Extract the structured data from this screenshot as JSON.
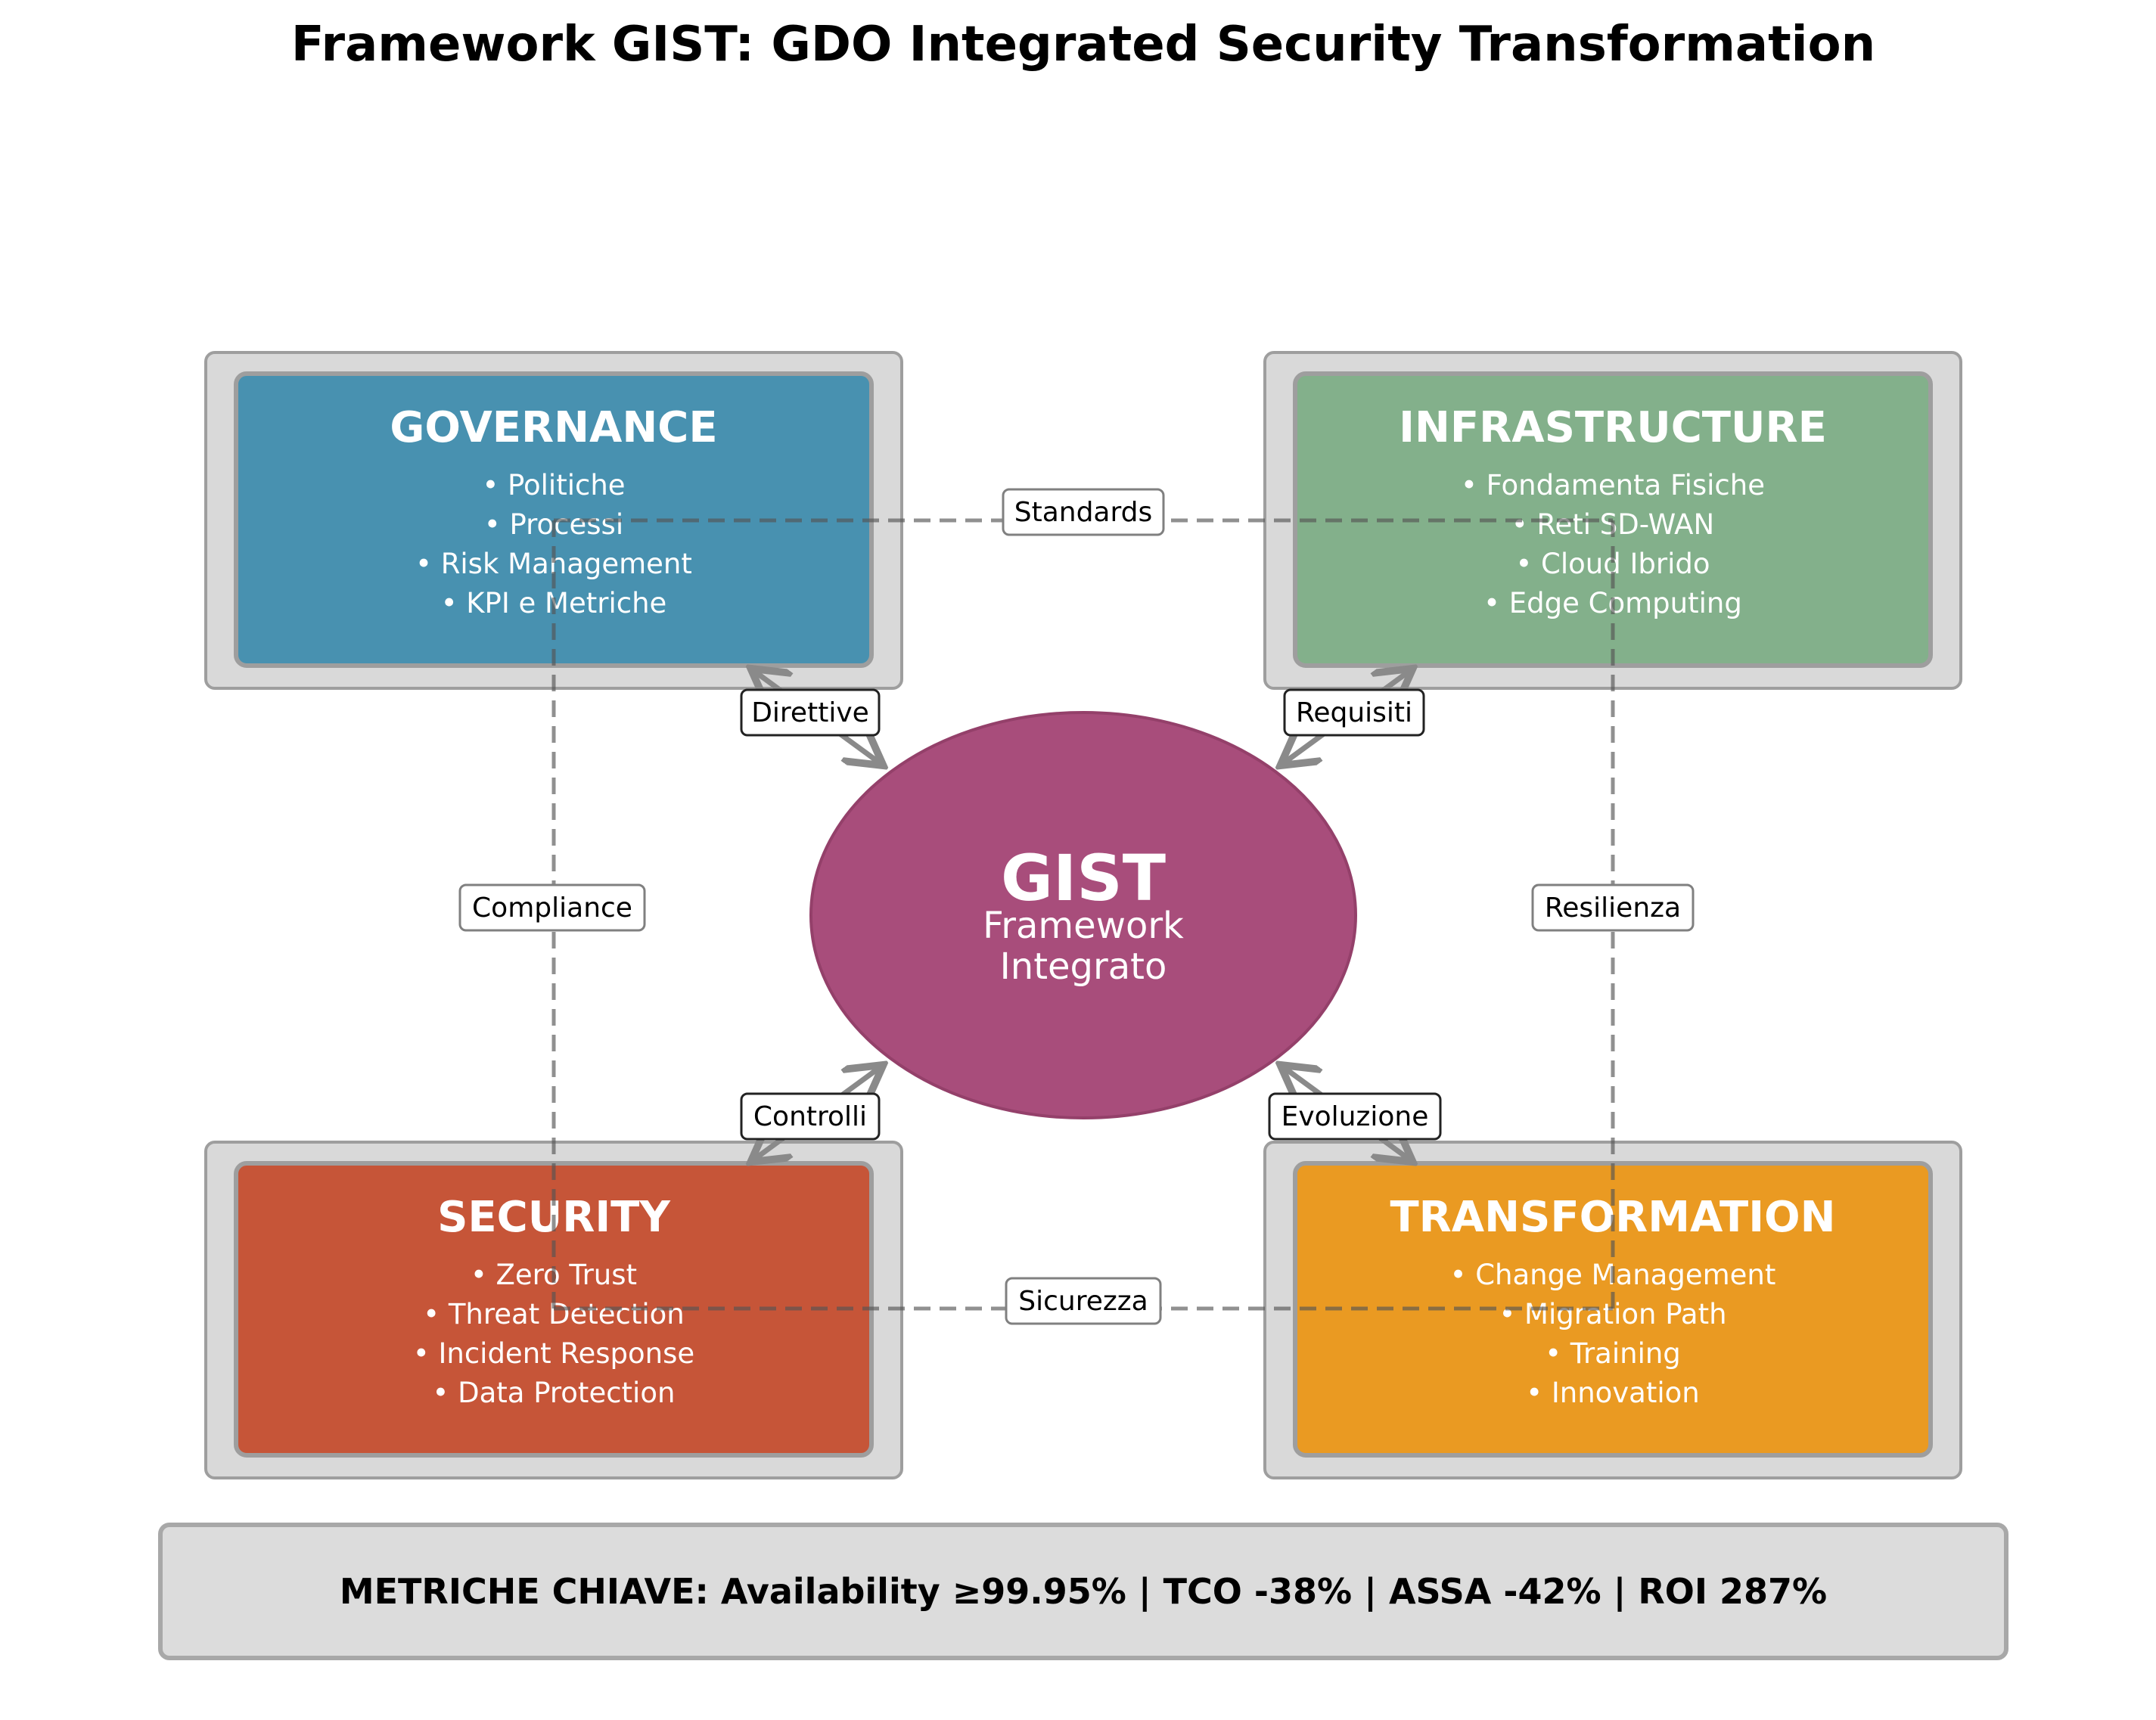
{
  "title": "Framework GIST: GDO Integrated Security Transformation",
  "center": {
    "title": "GIST",
    "subtitle_line1": "Framework",
    "subtitle_line2": "Integrato",
    "color": "#A84D7B"
  },
  "boxes": {
    "governance": {
      "title": "GOVERNANCE",
      "color": "#4891B0",
      "items": [
        "• Politiche",
        "• Processi",
        "• Risk Management",
        "• KPI e Metriche"
      ]
    },
    "infrastructure": {
      "title": "INFRASTRUCTURE",
      "color": "#83B08B",
      "items": [
        "• Fondamenta Fisiche",
        "• Reti SD-WAN",
        "• Cloud Ibrido",
        "• Edge Computing"
      ]
    },
    "security": {
      "title": "SECURITY",
      "color": "#C65538",
      "items": [
        "• Zero Trust",
        "• Threat Detection",
        "• Incident Response",
        "• Data Protection"
      ]
    },
    "transformation": {
      "title": "TRANSFORMATION",
      "color": "#EA9A22",
      "items": [
        "• Change Management",
        "• Migration Path",
        "• Training",
        "• Innovation"
      ]
    }
  },
  "connections": {
    "direttive": "Direttive",
    "requisiti": "Requisiti",
    "controlli": "Controlli",
    "evoluzione": "Evoluzione",
    "standards": "Standards",
    "compliance": "Compliance",
    "resilienza": "Resilienza",
    "sicurezza": "Sicurezza"
  },
  "metrics": "METRICHE CHIAVE: Availability ≥99.95% | TCO -38% | ASSA -42% | ROI 287%"
}
